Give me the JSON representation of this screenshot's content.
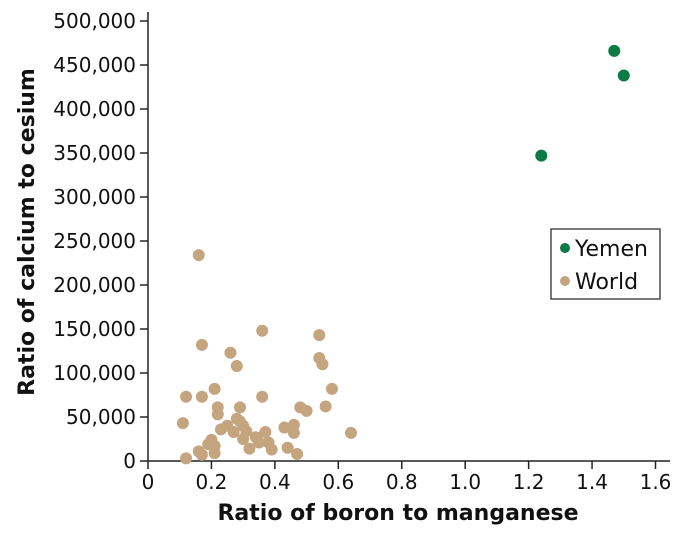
{
  "chart_data": {
    "type": "scatter",
    "title": "",
    "xlabel": "Ratio of boron to manganese",
    "ylabel": "Ratio of calcium to cesium",
    "xlim": [
      0,
      1.65
    ],
    "ylim": [
      0,
      520000
    ],
    "xticks": [
      0,
      0.2,
      0.4,
      0.6,
      0.8,
      1.0,
      1.2,
      1.4,
      1.6
    ],
    "xtick_labels": [
      "0",
      "0.2",
      "0.4",
      "0.6",
      "0.8",
      "1.0",
      "1.2",
      "1.4",
      "1.6"
    ],
    "yticks": [
      0,
      50000,
      100000,
      150000,
      200000,
      250000,
      300000,
      350000,
      400000,
      450000,
      500000
    ],
    "ytick_labels": [
      "0",
      "50,000",
      "100,000",
      "150,000",
      "200,000",
      "250,000",
      "300,000",
      "350,000",
      "400,000",
      "450,000",
      "500,000"
    ],
    "grid": false,
    "legend_position": "right",
    "series": [
      {
        "name": "Yemen",
        "color": "#0b7a43",
        "points": [
          [
            1.47,
            466000
          ],
          [
            1.5,
            438000
          ],
          [
            1.24,
            347000
          ]
        ]
      },
      {
        "name": "World",
        "color": "#c4a57f",
        "points": [
          [
            0.16,
            234000
          ],
          [
            0.17,
            132000
          ],
          [
            0.36,
            148000
          ],
          [
            0.54,
            143000
          ],
          [
            0.26,
            123000
          ],
          [
            0.54,
            117000
          ],
          [
            0.55,
            110000
          ],
          [
            0.28,
            108000
          ],
          [
            0.21,
            82000
          ],
          [
            0.58,
            82000
          ],
          [
            0.12,
            73000
          ],
          [
            0.17,
            73000
          ],
          [
            0.36,
            73000
          ],
          [
            0.22,
            61000
          ],
          [
            0.48,
            61000
          ],
          [
            0.29,
            61000
          ],
          [
            0.56,
            62000
          ],
          [
            0.5,
            57000
          ],
          [
            0.22,
            53000
          ],
          [
            0.28,
            48000
          ],
          [
            0.11,
            43000
          ],
          [
            0.29,
            45000
          ],
          [
            0.3,
            40000
          ],
          [
            0.25,
            40000
          ],
          [
            0.43,
            38000
          ],
          [
            0.46,
            41000
          ],
          [
            0.23,
            36000
          ],
          [
            0.27,
            33000
          ],
          [
            0.31,
            34000
          ],
          [
            0.37,
            33000
          ],
          [
            0.46,
            32000
          ],
          [
            0.64,
            32000
          ],
          [
            0.34,
            27000
          ],
          [
            0.3,
            25000
          ],
          [
            0.2,
            24000
          ],
          [
            0.38,
            21000
          ],
          [
            0.35,
            21000
          ],
          [
            0.19,
            19000
          ],
          [
            0.21,
            17000
          ],
          [
            0.44,
            15000
          ],
          [
            0.32,
            14000
          ],
          [
            0.39,
            13000
          ],
          [
            0.16,
            11000
          ],
          [
            0.21,
            9000
          ],
          [
            0.47,
            8000
          ],
          [
            0.17,
            7000
          ],
          [
            0.12,
            3000
          ]
        ]
      }
    ]
  }
}
